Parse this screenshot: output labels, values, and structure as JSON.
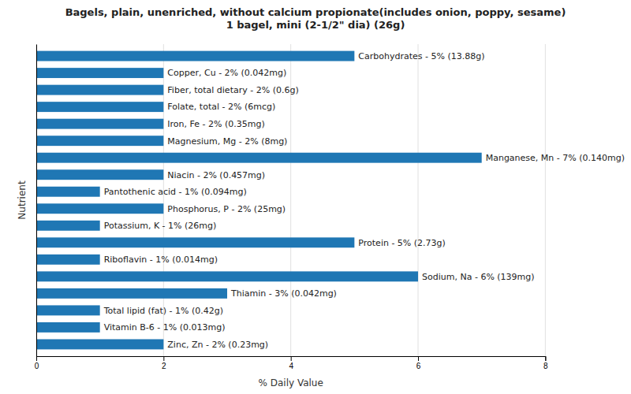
{
  "chart_data": {
    "type": "bar",
    "orientation": "horizontal",
    "title": "Bagels, plain, unenriched, without calcium propionate(includes onion, poppy, sesame)\n1 bagel, mini (2-1/2\" dia) (26g)",
    "x_label": "% Daily Value",
    "y_label": "Nutrient",
    "categories": [
      "Carbohydrates - 5% (13.88g)",
      "Copper, Cu - 2% (0.042mg)",
      "Fiber, total dietary - 2% (0.6g)",
      "Folate, total - 2% (6mcg)",
      "Iron, Fe - 2% (0.35mg)",
      "Magnesium, Mg - 2% (8mg)",
      "Manganese, Mn - 7% (0.140mg)",
      "Niacin - 2% (0.457mg)",
      "Pantothenic acid - 1% (0.094mg)",
      "Phosphorus, P - 2% (25mg)",
      "Potassium, K - 1% (26mg)",
      "Protein - 5% (2.73g)",
      "Riboflavin - 1% (0.014mg)",
      "Sodium, Na - 6% (139mg)",
      "Thiamin - 3% (0.042mg)",
      "Total lipid (fat) - 1% (0.42g)",
      "Vitamin B-6 - 1% (0.013mg)",
      "Zinc, Zn - 2% (0.23mg)"
    ],
    "values": [
      5.0,
      2.0,
      2.0,
      2.0,
      2.0,
      2.0,
      7.0,
      2.0,
      1.0,
      2.0,
      1.0,
      5.0,
      1.0,
      6.0,
      3.0,
      1.0,
      1.0,
      2.0
    ],
    "xlim": [
      0,
      8
    ],
    "xticks": [
      0,
      2,
      4,
      6,
      8
    ],
    "grid": true,
    "tick_labels": "x"
  }
}
